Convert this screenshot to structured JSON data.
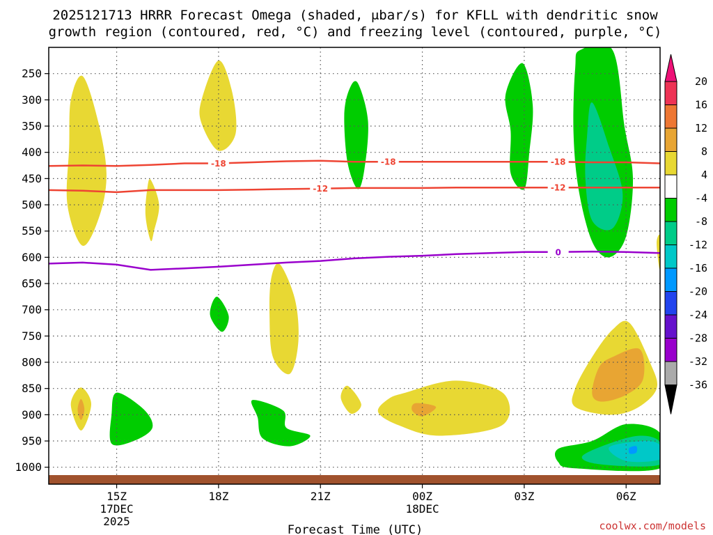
{
  "chart_data": {
    "type": "heatmap",
    "title_line1": "2025121713 HRRR Forecast Omega (shaded, μbar/s) for KFLL with dendritic snow",
    "title_line2": "growth region (contoured, red, °C) and freezing level (contoured, purple, °C)",
    "xlabel": "Forecast Time (UTC)",
    "credit": "coolwx.com/models",
    "colors": {
      "axis": "#000000",
      "grid": "#555555",
      "dsg_contour": "#ee4433",
      "freezing_contour": "#9900cc",
      "ground": "#a0522d",
      "credit": "#cc3333"
    },
    "x_ticks": [
      {
        "label": "15Z",
        "sub1": "17DEC",
        "sub2": "2025",
        "hour": 15
      },
      {
        "label": "18Z",
        "sub1": "",
        "sub2": "",
        "hour": 18
      },
      {
        "label": "21Z",
        "sub1": "",
        "sub2": "",
        "hour": 21
      },
      {
        "label": "00Z",
        "sub1": "18DEC",
        "sub2": "",
        "hour": 24
      },
      {
        "label": "03Z",
        "sub1": "",
        "sub2": "",
        "hour": 27
      },
      {
        "label": "06Z",
        "sub1": "",
        "sub2": "",
        "hour": 30
      }
    ],
    "x_range_hours": [
      13,
      31
    ],
    "y_range_hpa": [
      200,
      1015
    ],
    "y_ticks": [
      {
        "label": "250",
        "p": 250
      },
      {
        "label": "300",
        "p": 300
      },
      {
        "label": "350",
        "p": 350
      },
      {
        "label": "400",
        "p": 400
      },
      {
        "label": "450",
        "p": 450
      },
      {
        "label": "500",
        "p": 500
      },
      {
        "label": "550",
        "p": 550
      },
      {
        "label": "600",
        "p": 600
      },
      {
        "label": "650",
        "p": 650
      },
      {
        "label": "700",
        "p": 700
      },
      {
        "label": "750",
        "p": 750
      },
      {
        "label": "800",
        "p": 800
      },
      {
        "label": "850",
        "p": 850
      },
      {
        "label": "900",
        "p": 900
      },
      {
        "label": "950",
        "p": 950
      },
      {
        "label": "1000",
        "p": 1000
      }
    ],
    "colorbar": {
      "labels": [
        "20",
        "16",
        "12",
        "8",
        "4",
        "-4",
        "-8",
        "-12",
        "-16",
        "-20",
        "-24",
        "-28",
        "-32",
        "-36"
      ],
      "colors": [
        "#ee3355",
        "#ee7733",
        "#e8a533",
        "#e8d833",
        "#ffffff",
        "#00cc00",
        "#00cc88",
        "#00c8c8",
        "#0099ff",
        "#2244ee",
        "#6611cc",
        "#9900cc",
        "#aaaaaa",
        "#000000"
      ],
      "top_arrow_color": "#ee1177",
      "bottom_arrow_color": "#000000"
    },
    "contours": [
      {
        "name": "dsg-minus18",
        "label": "-18",
        "color": "#ee4433",
        "points": [
          [
            13.0,
            426
          ],
          [
            14.0,
            425
          ],
          [
            15.0,
            426
          ],
          [
            16.0,
            424
          ],
          [
            17.0,
            421
          ],
          [
            18.0,
            421
          ],
          [
            19.0,
            419
          ],
          [
            20.0,
            417
          ],
          [
            21.0,
            416
          ],
          [
            22.0,
            418
          ],
          [
            23.0,
            418
          ],
          [
            24.0,
            418
          ],
          [
            25.0,
            418
          ],
          [
            26.0,
            418
          ],
          [
            27.0,
            418
          ],
          [
            28.0,
            418
          ],
          [
            29.0,
            419
          ],
          [
            30.0,
            419
          ],
          [
            31.0,
            421
          ]
        ],
        "label_hours": [
          18.0,
          23.0,
          28.0
        ]
      },
      {
        "name": "dsg-minus12",
        "label": "-12",
        "color": "#ee4433",
        "points": [
          [
            13.0,
            472
          ],
          [
            14.0,
            473
          ],
          [
            15.0,
            476
          ],
          [
            16.0,
            472
          ],
          [
            17.0,
            472
          ],
          [
            18.0,
            472
          ],
          [
            19.0,
            471
          ],
          [
            20.0,
            470
          ],
          [
            21.0,
            469
          ],
          [
            22.0,
            468
          ],
          [
            23.0,
            468
          ],
          [
            24.0,
            468
          ],
          [
            25.0,
            467
          ],
          [
            26.0,
            467
          ],
          [
            27.0,
            467
          ],
          [
            28.0,
            467
          ],
          [
            29.0,
            467
          ],
          [
            30.0,
            467
          ],
          [
            31.0,
            467
          ]
        ],
        "label_hours": [
          21.0,
          28.0
        ]
      },
      {
        "name": "freezing-level",
        "label": "0",
        "color": "#9900cc",
        "points": [
          [
            13.0,
            612
          ],
          [
            14.0,
            610
          ],
          [
            15.0,
            614
          ],
          [
            16.0,
            624
          ],
          [
            17.0,
            621
          ],
          [
            18.0,
            618
          ],
          [
            19.0,
            614
          ],
          [
            20.0,
            610
          ],
          [
            21.0,
            607
          ],
          [
            22.0,
            602
          ],
          [
            23.0,
            599
          ],
          [
            24.0,
            597
          ],
          [
            25.0,
            594
          ],
          [
            26.0,
            592
          ],
          [
            27.0,
            590
          ],
          [
            28.0,
            590
          ],
          [
            29.0,
            589
          ],
          [
            30.0,
            590
          ],
          [
            31.0,
            592
          ]
        ],
        "label_hours": [
          28.0
        ]
      }
    ],
    "omega_regions": [
      {
        "name": "uplift-band-15z",
        "value_range": "4 to 8",
        "color": "#e8d833",
        "points": [
          [
            14.0,
            255
          ],
          [
            14.45,
            340
          ],
          [
            14.7,
            440
          ],
          [
            14.5,
            520
          ],
          [
            14.0,
            578
          ],
          [
            13.55,
            500
          ],
          [
            13.6,
            390
          ],
          [
            13.65,
            300
          ]
        ]
      },
      {
        "name": "small-yellow-16z",
        "value_range": "4 to 8",
        "color": "#e8d833",
        "points": [
          [
            16.0,
            452
          ],
          [
            16.25,
            500
          ],
          [
            16.1,
            550
          ],
          [
            16.0,
            568
          ],
          [
            15.85,
            520
          ],
          [
            15.9,
            470
          ]
        ]
      },
      {
        "name": "yellow-18z-upper",
        "value_range": "4 to 8",
        "color": "#e8d833",
        "points": [
          [
            18.0,
            225
          ],
          [
            18.4,
            285
          ],
          [
            18.5,
            365
          ],
          [
            18.0,
            397
          ],
          [
            17.5,
            345
          ],
          [
            17.5,
            300
          ]
        ]
      },
      {
        "name": "green-18z-mid",
        "value_range": "-4 to -8",
        "color": "#00cc00",
        "points": [
          [
            17.95,
            675
          ],
          [
            18.3,
            712
          ],
          [
            18.1,
            742
          ],
          [
            17.75,
            710
          ]
        ]
      },
      {
        "name": "yellow-20z-mid",
        "value_range": "4 to 8",
        "color": "#e8d833",
        "points": [
          [
            19.8,
            613
          ],
          [
            20.25,
            680
          ],
          [
            20.35,
            760
          ],
          [
            20.1,
            822
          ],
          [
            19.6,
            790
          ],
          [
            19.5,
            710
          ],
          [
            19.55,
            640
          ]
        ]
      },
      {
        "name": "green-22z-upper",
        "value_range": "-4 to -8",
        "color": "#00cc00",
        "points": [
          [
            22.1,
            268
          ],
          [
            22.4,
            340
          ],
          [
            22.3,
            430
          ],
          [
            22.1,
            470
          ],
          [
            21.8,
            420
          ],
          [
            21.7,
            330
          ],
          [
            21.85,
            280
          ]
        ]
      },
      {
        "name": "green-03z-upper",
        "value_range": "-4 to -8",
        "color": "#00cc00",
        "points": [
          [
            26.95,
            230
          ],
          [
            27.25,
            310
          ],
          [
            27.15,
            400
          ],
          [
            27.0,
            470
          ],
          [
            26.6,
            440
          ],
          [
            26.6,
            360
          ],
          [
            26.45,
            290
          ]
        ]
      },
      {
        "name": "green-05z-column",
        "value_range": "-4 to -8",
        "color": "#00cc00",
        "points": [
          [
            28.65,
            205
          ],
          [
            29.6,
            205
          ],
          [
            29.95,
            350
          ],
          [
            30.2,
            450
          ],
          [
            30.0,
            560
          ],
          [
            29.5,
            600
          ],
          [
            29.0,
            570
          ],
          [
            28.6,
            470
          ],
          [
            28.45,
            360
          ],
          [
            28.5,
            240
          ]
        ]
      },
      {
        "name": "teal-05z-core",
        "value_range": "-8 to -12",
        "color": "#00cc88",
        "points": [
          [
            29.0,
            305
          ],
          [
            29.5,
            390
          ],
          [
            29.9,
            480
          ],
          [
            29.6,
            545
          ],
          [
            29.0,
            530
          ],
          [
            28.8,
            450
          ],
          [
            28.85,
            370
          ]
        ]
      },
      {
        "name": "yellow-15z-low",
        "value_range": "4 to 8",
        "color": "#e8d833",
        "points": [
          [
            13.95,
            848
          ],
          [
            14.25,
            880
          ],
          [
            13.95,
            930
          ],
          [
            13.65,
            880
          ]
        ]
      },
      {
        "name": "orange-15z-low",
        "value_range": "8 to 12",
        "color": "#e8a533",
        "points": [
          [
            13.95,
            870
          ],
          [
            14.05,
            890
          ],
          [
            13.95,
            910
          ],
          [
            13.85,
            890
          ]
        ]
      },
      {
        "name": "green-16z-low",
        "value_range": "-4 to -8",
        "color": "#00cc00",
        "points": [
          [
            15.0,
            858
          ],
          [
            15.8,
            890
          ],
          [
            16.05,
            925
          ],
          [
            15.5,
            950
          ],
          [
            14.85,
            955
          ],
          [
            14.85,
            900
          ]
        ]
      },
      {
        "name": "green-19z-low",
        "value_range": "-4 to -8",
        "color": "#00cc00",
        "points": [
          [
            19.0,
            872
          ],
          [
            19.9,
            892
          ],
          [
            20.0,
            925
          ],
          [
            20.7,
            940
          ],
          [
            20.1,
            960
          ],
          [
            19.3,
            945
          ],
          [
            19.15,
            905
          ]
        ]
      },
      {
        "name": "yellow-22z-low",
        "value_range": "4 to 8",
        "color": "#e8d833",
        "points": [
          [
            21.8,
            845
          ],
          [
            22.2,
            880
          ],
          [
            21.9,
            898
          ],
          [
            21.6,
            868
          ]
        ]
      },
      {
        "name": "yellow-00z-low",
        "value_range": "4 to 8",
        "color": "#e8d833",
        "points": [
          [
            23.5,
            858
          ],
          [
            25.0,
            835
          ],
          [
            26.4,
            860
          ],
          [
            26.35,
            920
          ],
          [
            24.5,
            940
          ],
          [
            23.3,
            920
          ],
          [
            22.7,
            895
          ],
          [
            23.0,
            870
          ]
        ]
      },
      {
        "name": "orange-00z-low",
        "value_range": "8 to 12",
        "color": "#e8a533",
        "points": [
          [
            23.8,
            878
          ],
          [
            24.4,
            885
          ],
          [
            24.0,
            903
          ],
          [
            23.7,
            892
          ]
        ]
      },
      {
        "name": "yellow-06z-low",
        "value_range": "4 to 8",
        "color": "#e8d833",
        "points": [
          [
            29.6,
            738
          ],
          [
            30.1,
            725
          ],
          [
            30.7,
            800
          ],
          [
            30.9,
            850
          ],
          [
            30.3,
            888
          ],
          [
            29.5,
            900
          ],
          [
            28.5,
            885
          ],
          [
            28.5,
            850
          ],
          [
            29.0,
            790
          ]
        ]
      },
      {
        "name": "orange-06z-low",
        "value_range": "8 to 12",
        "color": "#e8a533",
        "points": [
          [
            29.6,
            790
          ],
          [
            30.4,
            775
          ],
          [
            30.5,
            832
          ],
          [
            30.0,
            862
          ],
          [
            29.3,
            875
          ],
          [
            29.0,
            860
          ],
          [
            29.2,
            810
          ]
        ]
      },
      {
        "name": "green-06z-surface",
        "value_range": "-4 to -8",
        "color": "#00cc00",
        "points": [
          [
            28.0,
            965
          ],
          [
            29.0,
            950
          ],
          [
            30.0,
            918
          ],
          [
            31.0,
            935
          ],
          [
            31.0,
            1002
          ],
          [
            28.5,
            1002
          ],
          [
            28.0,
            990
          ]
        ]
      },
      {
        "name": "teal-06z-surface",
        "value_range": "-8 to -12",
        "color": "#00cc88",
        "points": [
          [
            28.7,
            980
          ],
          [
            29.5,
            955
          ],
          [
            30.4,
            940
          ],
          [
            31.0,
            952
          ],
          [
            31.0,
            995
          ],
          [
            29.3,
            995
          ]
        ]
      },
      {
        "name": "cyan-06z-surface",
        "value_range": "-12 to -16",
        "color": "#00c8c8",
        "points": [
          [
            29.5,
            962
          ],
          [
            30.5,
            950
          ],
          [
            31.0,
            958
          ],
          [
            31.0,
            985
          ],
          [
            30.0,
            988
          ]
        ]
      },
      {
        "name": "blue-06z-surface",
        "value_range": "-16 to -20",
        "color": "#0099ff",
        "points": [
          [
            30.1,
            963
          ],
          [
            30.3,
            960
          ],
          [
            30.3,
            972
          ],
          [
            30.1,
            974
          ]
        ]
      },
      {
        "name": "yellow-edge-07z",
        "value_range": "4 to 8",
        "color": "#e8d833",
        "points": [
          [
            30.9,
            570
          ],
          [
            31.0,
            560
          ],
          [
            31.0,
            620
          ],
          [
            30.95,
            610
          ]
        ]
      }
    ]
  }
}
